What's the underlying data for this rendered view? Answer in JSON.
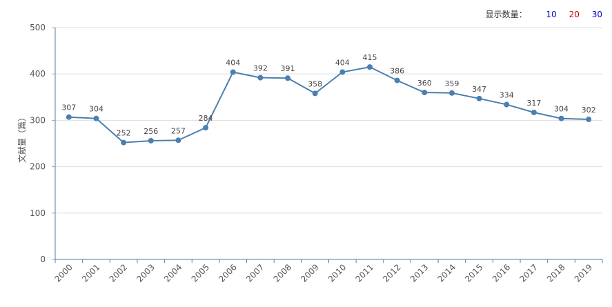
{
  "controls": {
    "label": "显示数量：",
    "options": [
      {
        "text": "10",
        "color": "#0000cc"
      },
      {
        "text": "20",
        "color": "#cc0000"
      },
      {
        "text": "30",
        "color": "#0000cc"
      }
    ]
  },
  "chart_data": {
    "type": "line",
    "title": "",
    "xlabel": "",
    "ylabel": "文献量（篇）",
    "ylim": [
      0,
      500
    ],
    "yticks": [
      0,
      100,
      200,
      300,
      400,
      500
    ],
    "grid": true,
    "line_color": "#4a7fb0",
    "categories": [
      "2000",
      "2001",
      "2002",
      "2003",
      "2004",
      "2005",
      "2006",
      "2007",
      "2008",
      "2009",
      "2010",
      "2011",
      "2012",
      "2013",
      "2014",
      "2015",
      "2016",
      "2017",
      "2018",
      "2019"
    ],
    "values": [
      307,
      304,
      252,
      256,
      257,
      284,
      404,
      392,
      391,
      358,
      404,
      415,
      386,
      360,
      359,
      347,
      334,
      317,
      304,
      302
    ]
  }
}
